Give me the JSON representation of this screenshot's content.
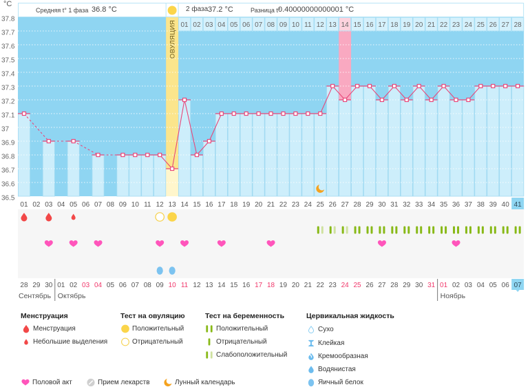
{
  "unit_label": "°C",
  "header": {
    "phase1_label": "Средняя t° 1 фаза",
    "phase1_value": "36.8 °C",
    "phase2_label": "2 фаза",
    "phase2_value": "37.2 °C",
    "diff_label": "Разница t°",
    "diff_value": "0.40000000000001 °C"
  },
  "ovulation_label": "ОВУЛЯЦИЯ",
  "chart_data": {
    "type": "line",
    "title": "",
    "xlabel": "",
    "ylabel": "°C",
    "ylim": [
      36.5,
      37.8
    ],
    "grid": true,
    "y_ticks": [
      "37.8",
      "37.7",
      "37.6",
      "37.5",
      "37.4",
      "37.3",
      "37.2",
      "37.1",
      "37",
      "36.9",
      "36.8",
      "36.7",
      "36.6",
      "36.5"
    ],
    "x": [
      "01",
      "02",
      "03",
      "04",
      "05",
      "06",
      "07",
      "08",
      "09",
      "10",
      "11",
      "12",
      "13",
      "14",
      "15",
      "16",
      "17",
      "18",
      "19",
      "20",
      "21",
      "22",
      "23",
      "24",
      "25",
      "26",
      "27",
      "28",
      "29",
      "30",
      "31",
      "32",
      "33",
      "34",
      "35",
      "36",
      "37",
      "38",
      "39",
      "40",
      "41"
    ],
    "temperatures": [
      37.1,
      null,
      36.9,
      null,
      36.9,
      null,
      36.8,
      null,
      36.8,
      36.8,
      36.8,
      36.8,
      36.7,
      37.2,
      36.8,
      36.9,
      37.1,
      37.1,
      37.1,
      37.1,
      37.1,
      37.1,
      37.1,
      37.1,
      37.1,
      37.3,
      37.2,
      37.3,
      37.3,
      37.2,
      37.3,
      37.2,
      37.3,
      37.2,
      37.3,
      37.2,
      37.2,
      37.3,
      37.3,
      37.3,
      37.3
    ],
    "ovulation_day": 13,
    "phase2_start_day": 14,
    "phase2_days": [
      "01",
      "02",
      "03",
      "04",
      "05",
      "06",
      "07",
      "08",
      "09",
      "10",
      "11",
      "12",
      "13",
      "14",
      "15",
      "16",
      "17",
      "18",
      "19",
      "20",
      "21",
      "22",
      "23",
      "24",
      "25",
      "26",
      "27",
      "28"
    ],
    "highlighted_day": 27,
    "current_day": 41
  },
  "symbols": {
    "menstruation": [
      1,
      3
    ],
    "spotting": [
      5
    ],
    "ovulation_test_positive": [
      13
    ],
    "ovulation_test_negative": [
      12
    ],
    "pregnancy_test_positive": [
      28,
      29,
      30,
      31,
      32,
      33,
      34,
      35,
      36,
      37,
      38,
      39,
      40,
      41
    ],
    "pregnancy_test_weak": [
      25,
      26,
      27
    ],
    "intercourse": [
      3,
      5,
      7,
      12,
      14,
      17,
      21,
      30,
      36
    ],
    "medication": [],
    "cervical_egg_white": [
      12,
      13
    ],
    "moon": [
      25
    ]
  },
  "dates": [
    {
      "label": "28",
      "weekend": false
    },
    {
      "label": "29",
      "weekend": false
    },
    {
      "label": "30",
      "weekend": false
    },
    {
      "label": "01",
      "weekend": false
    },
    {
      "label": "02",
      "weekend": false
    },
    {
      "label": "03",
      "weekend": true
    },
    {
      "label": "04",
      "weekend": true
    },
    {
      "label": "05",
      "weekend": false
    },
    {
      "label": "06",
      "weekend": false
    },
    {
      "label": "07",
      "weekend": false
    },
    {
      "label": "08",
      "weekend": false
    },
    {
      "label": "09",
      "weekend": false
    },
    {
      "label": "10",
      "weekend": true
    },
    {
      "label": "11",
      "weekend": true
    },
    {
      "label": "12",
      "weekend": false
    },
    {
      "label": "13",
      "weekend": false
    },
    {
      "label": "14",
      "weekend": false
    },
    {
      "label": "15",
      "weekend": false
    },
    {
      "label": "16",
      "weekend": false
    },
    {
      "label": "17",
      "weekend": true
    },
    {
      "label": "18",
      "weekend": true
    },
    {
      "label": "19",
      "weekend": false
    },
    {
      "label": "20",
      "weekend": false
    },
    {
      "label": "21",
      "weekend": false
    },
    {
      "label": "22",
      "weekend": false
    },
    {
      "label": "23",
      "weekend": false
    },
    {
      "label": "24",
      "weekend": true
    },
    {
      "label": "25",
      "weekend": true
    },
    {
      "label": "26",
      "weekend": false
    },
    {
      "label": "27",
      "weekend": false
    },
    {
      "label": "28",
      "weekend": false
    },
    {
      "label": "29",
      "weekend": false
    },
    {
      "label": "30",
      "weekend": false
    },
    {
      "label": "31",
      "weekend": true
    },
    {
      "label": "01",
      "weekend": true
    },
    {
      "label": "02",
      "weekend": false
    },
    {
      "label": "03",
      "weekend": false
    },
    {
      "label": "04",
      "weekend": false
    },
    {
      "label": "05",
      "weekend": false
    },
    {
      "label": "06",
      "weekend": false
    },
    {
      "label": "07",
      "weekend": false,
      "current": true
    }
  ],
  "months": [
    {
      "label": "Сентябрь",
      "start_day": 1
    },
    {
      "label": "Октябрь",
      "start_day": 4
    },
    {
      "label": "Ноябрь",
      "start_day": 35
    }
  ],
  "legend": {
    "menstruation": {
      "title": "Менструация",
      "items": [
        "Менструация",
        "Небольшие выделения"
      ]
    },
    "ovulation_test": {
      "title": "Тест на овуляцию",
      "items": [
        "Положительный",
        "Отрицательный"
      ]
    },
    "pregnancy_test": {
      "title": "Тест на беременность",
      "items": [
        "Положительный",
        "Отрицательный",
        "Слабоположительный"
      ]
    },
    "cervical_fluid": {
      "title": "Цервикальная жидкость",
      "items": [
        "Сухо",
        "Клейкая",
        "Кремообразная",
        "Водянистая",
        "Яичный белок"
      ]
    },
    "other": [
      "Половой акт",
      "Прием лекарств",
      "Лунный календарь"
    ]
  },
  "colors": {
    "plot_bg": "#8fd5f2",
    "bar": "#cdeefb",
    "bar_border": "#a3dbf2",
    "phase2_cell": "#d5f1fc",
    "phase2_cell_border": "#a8def4",
    "line": "#e8487a",
    "ovulation": "#fbe58c",
    "ovulation_light": "#fff6cc",
    "highlight": "#f9a9c1",
    "highlight_cell": "#fdd3de",
    "weekend": "#f0386b",
    "current": "#8fd6f2",
    "menstruation": "#f24848",
    "ovulation_test": "#fbd54a",
    "pregnancy": "#88b917",
    "pregnancy_weak": "#cfe2a0",
    "heart": "#ff55bb",
    "cervical": "#6cbcee",
    "moon": "#f5a21e",
    "medication": "#cfcfcf"
  }
}
